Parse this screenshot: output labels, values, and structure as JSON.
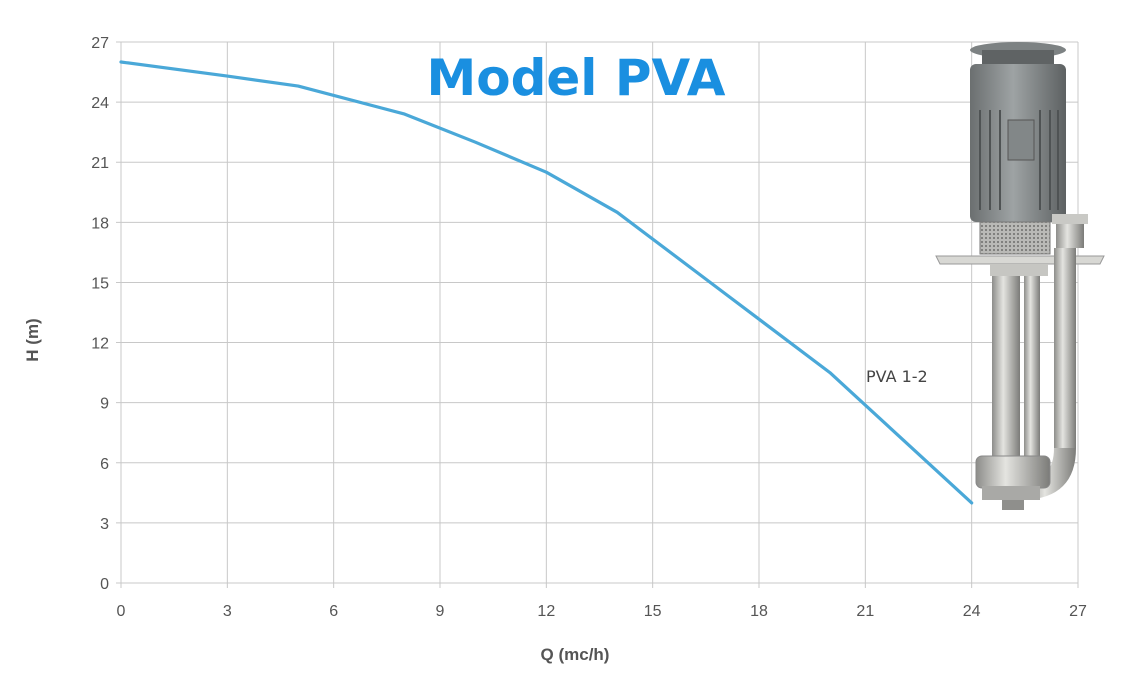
{
  "chart_data": {
    "type": "line",
    "title": "Model PVA",
    "xlabel": "Q (mc/h)",
    "ylabel": "H (m)",
    "xlim": [
      0,
      27
    ],
    "ylim": [
      0,
      27
    ],
    "xticks": [
      0,
      3,
      6,
      9,
      12,
      15,
      18,
      21,
      24,
      27
    ],
    "yticks": [
      0,
      3,
      6,
      9,
      12,
      15,
      18,
      21,
      24,
      27
    ],
    "grid": true,
    "series": [
      {
        "name": "PVA 1-2",
        "color": "#4aa8d8",
        "x": [
          0,
          3,
          5,
          8,
          10,
          12,
          14,
          17,
          20,
          24
        ],
        "y": [
          26,
          25.3,
          24.8,
          23.4,
          22,
          20.5,
          18.5,
          14.5,
          10.5,
          4
        ]
      }
    ],
    "product_image": "submersible-pump-photo"
  }
}
